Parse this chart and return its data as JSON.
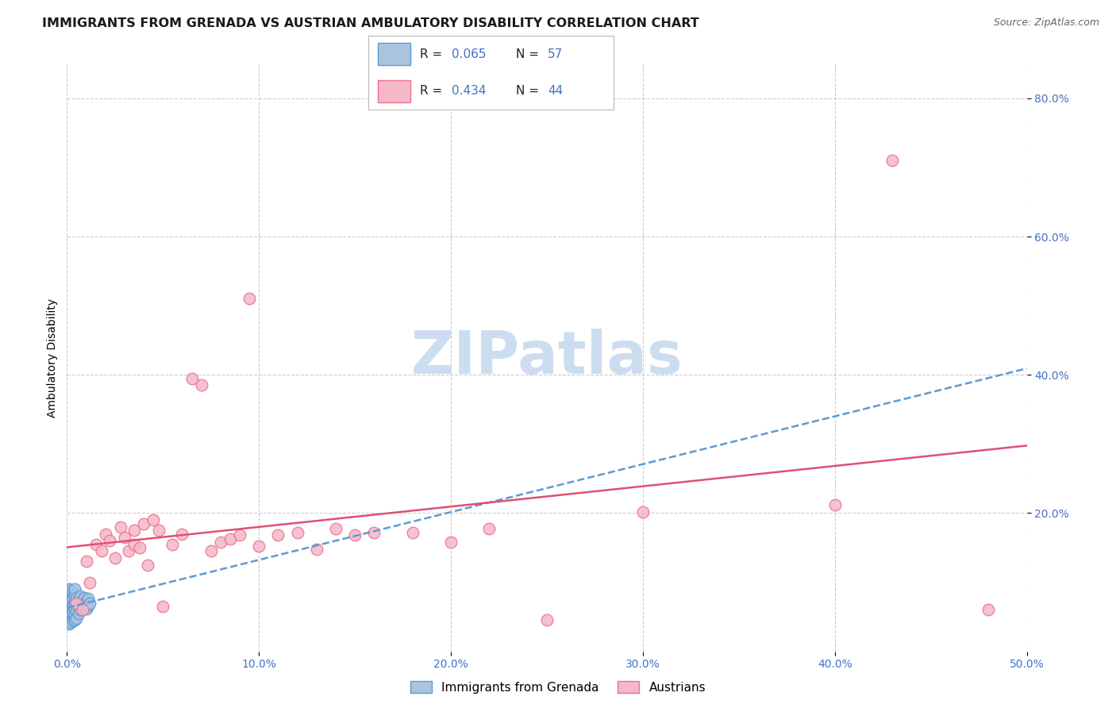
{
  "title": "IMMIGRANTS FROM GRENADA VS AUSTRIAN AMBULATORY DISABILITY CORRELATION CHART",
  "source": "Source: ZipAtlas.com",
  "ylabel": "Ambulatory Disability",
  "xlim": [
    0.0,
    0.5
  ],
  "ylim": [
    0.0,
    0.85
  ],
  "xtick_labels": [
    "0.0%",
    "10.0%",
    "20.0%",
    "30.0%",
    "40.0%",
    "50.0%"
  ],
  "xtick_vals": [
    0.0,
    0.1,
    0.2,
    0.3,
    0.4,
    0.5
  ],
  "ytick_labels": [
    "20.0%",
    "40.0%",
    "60.0%",
    "80.0%"
  ],
  "ytick_vals": [
    0.2,
    0.4,
    0.6,
    0.8
  ],
  "grid_color": "#cccccc",
  "background_color": "#ffffff",
  "blue_scatter": {
    "x": [
      0.0,
      0.0,
      0.001,
      0.001,
      0.001,
      0.001,
      0.001,
      0.001,
      0.001,
      0.001,
      0.001,
      0.001,
      0.001,
      0.002,
      0.002,
      0.002,
      0.002,
      0.002,
      0.002,
      0.002,
      0.002,
      0.002,
      0.002,
      0.003,
      0.003,
      0.003,
      0.003,
      0.003,
      0.003,
      0.003,
      0.003,
      0.003,
      0.004,
      0.004,
      0.004,
      0.004,
      0.004,
      0.004,
      0.005,
      0.005,
      0.005,
      0.005,
      0.006,
      0.006,
      0.006,
      0.007,
      0.007,
      0.007,
      0.008,
      0.008,
      0.009,
      0.009,
      0.01,
      0.01,
      0.011,
      0.011,
      0.012
    ],
    "y": [
      0.06,
      0.05,
      0.075,
      0.065,
      0.055,
      0.045,
      0.04,
      0.08,
      0.07,
      0.06,
      0.05,
      0.09,
      0.085,
      0.078,
      0.068,
      0.058,
      0.048,
      0.042,
      0.082,
      0.072,
      0.062,
      0.052,
      0.088,
      0.08,
      0.07,
      0.06,
      0.05,
      0.044,
      0.086,
      0.076,
      0.066,
      0.056,
      0.082,
      0.072,
      0.062,
      0.052,
      0.09,
      0.045,
      0.078,
      0.068,
      0.058,
      0.048,
      0.075,
      0.065,
      0.055,
      0.08,
      0.07,
      0.06,
      0.074,
      0.064,
      0.078,
      0.068,
      0.072,
      0.062,
      0.076,
      0.066,
      0.07
    ],
    "color": "#aac4e0",
    "edge_color": "#5b9bd5",
    "line_color": "#5b9bd5",
    "R": 0.065,
    "N": 57
  },
  "pink_scatter": {
    "x": [
      0.005,
      0.008,
      0.01,
      0.012,
      0.015,
      0.018,
      0.02,
      0.022,
      0.025,
      0.028,
      0.03,
      0.032,
      0.035,
      0.035,
      0.038,
      0.04,
      0.042,
      0.045,
      0.048,
      0.05,
      0.055,
      0.06,
      0.065,
      0.07,
      0.075,
      0.08,
      0.085,
      0.09,
      0.095,
      0.1,
      0.11,
      0.12,
      0.13,
      0.14,
      0.15,
      0.16,
      0.18,
      0.2,
      0.22,
      0.25,
      0.3,
      0.4,
      0.43,
      0.48
    ],
    "y": [
      0.07,
      0.06,
      0.13,
      0.1,
      0.155,
      0.145,
      0.17,
      0.16,
      0.135,
      0.18,
      0.165,
      0.145,
      0.175,
      0.155,
      0.15,
      0.185,
      0.125,
      0.19,
      0.175,
      0.065,
      0.155,
      0.17,
      0.395,
      0.385,
      0.145,
      0.158,
      0.163,
      0.168,
      0.51,
      0.152,
      0.168,
      0.172,
      0.148,
      0.178,
      0.168,
      0.172,
      0.172,
      0.158,
      0.178,
      0.045,
      0.202,
      0.212,
      0.71,
      0.06
    ],
    "color": "#f4b8c8",
    "edge_color": "#f07090",
    "line_color": "#e05070",
    "R": 0.434,
    "N": 44
  },
  "R_N_color": "#4472c4",
  "watermark_text": "ZIPatlas",
  "watermark_color": "#cdddf0",
  "title_fontsize": 11.5,
  "axis_label_fontsize": 10,
  "tick_fontsize": 10,
  "bottom_legend_items": [
    "Immigrants from Grenada",
    "Austrians"
  ]
}
